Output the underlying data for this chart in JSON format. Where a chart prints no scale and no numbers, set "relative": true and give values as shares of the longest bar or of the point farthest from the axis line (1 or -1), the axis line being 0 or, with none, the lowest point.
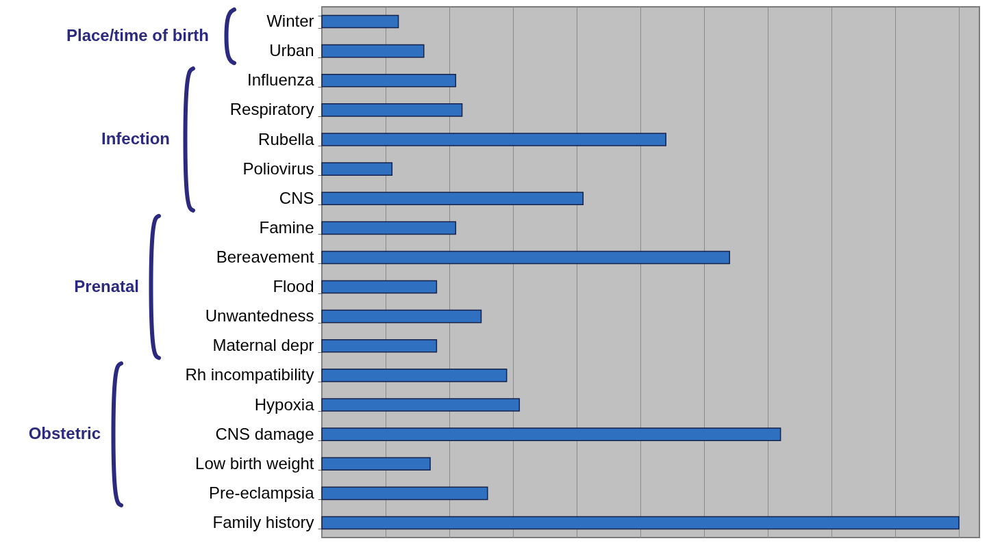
{
  "chart_data": {
    "type": "bar",
    "orientation": "horizontal",
    "relative": true,
    "categories": [
      "Winter",
      "Urban",
      "Influenza",
      "Respiratory",
      "Rubella",
      "Poliovirus",
      "CNS",
      "Famine",
      "Bereavement",
      "Flood",
      "Unwantedness",
      "Maternal depr",
      "Rh incompatibility",
      "Hypoxia",
      "CNS damage",
      "Low birth weight",
      "Pre-eclampsia",
      "Family history"
    ],
    "values": [
      0.12,
      0.16,
      0.21,
      0.22,
      0.54,
      0.11,
      0.41,
      0.21,
      0.64,
      0.18,
      0.25,
      0.18,
      0.29,
      0.31,
      0.72,
      0.17,
      0.26,
      1.0
    ],
    "color": "#3070c0",
    "grid": "x",
    "annotations": [
      "Place/time of birth",
      "Infection",
      "Prenatal",
      "Obstetric"
    ]
  }
}
